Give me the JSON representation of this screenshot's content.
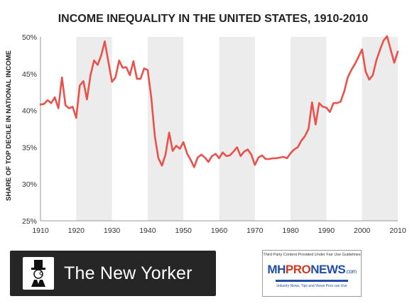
{
  "chart_data": {
    "type": "line",
    "title": "INCOME INEQUALITY IN THE UNITED STATES, 1910-2010",
    "ylabel": "SHARE OF TOP DECILE IN NATIONAL INCOME",
    "xlabel": "",
    "xlim": [
      1910,
      2010
    ],
    "ylim": [
      25,
      50
    ],
    "x_ticks": [
      1910,
      1920,
      1930,
      1940,
      1950,
      1960,
      1970,
      1980,
      1990,
      2000,
      2010
    ],
    "y_ticks": [
      "25%",
      "30%",
      "35%",
      "40%",
      "45%",
      "50%"
    ],
    "y_tick_values": [
      25,
      30,
      35,
      40,
      45,
      50
    ],
    "shaded_bands": [
      [
        1920,
        1930
      ],
      [
        1940,
        1950
      ],
      [
        1960,
        1970
      ],
      [
        1980,
        1990
      ],
      [
        2000,
        2010
      ]
    ],
    "grid": false,
    "line_color": "#e8524a",
    "band_color": "#ececec",
    "series": [
      {
        "x": [
          1910,
          1911,
          1912,
          1913,
          1914,
          1915,
          1916,
          1917,
          1918,
          1919,
          1920,
          1921,
          1922,
          1923,
          1924,
          1925,
          1926,
          1927,
          1928,
          1929,
          1930,
          1931,
          1932,
          1933,
          1934,
          1935,
          1936,
          1937,
          1938,
          1939,
          1940,
          1941,
          1942,
          1943,
          1944,
          1945,
          1946,
          1947,
          1948,
          1949,
          1950,
          1951,
          1952,
          1953,
          1954,
          1955,
          1956,
          1957,
          1958,
          1959,
          1960,
          1961,
          1962,
          1963,
          1964,
          1965,
          1966,
          1967,
          1968,
          1969,
          1970,
          1971,
          1972,
          1973,
          1974,
          1975,
          1976,
          1977,
          1978,
          1979,
          1980,
          1981,
          1982,
          1983,
          1984,
          1985,
          1986,
          1987,
          1988,
          1989,
          1990,
          1991,
          1992,
          1993,
          1994,
          1995,
          1996,
          1997,
          1998,
          1999,
          2000,
          2001,
          2002,
          2003,
          2004,
          2005,
          2006,
          2007,
          2008,
          2009,
          2010
        ],
        "values": [
          40.8,
          40.9,
          41.4,
          41.0,
          41.8,
          40.3,
          44.5,
          40.7,
          40.3,
          40.5,
          39.0,
          43.4,
          44.0,
          41.5,
          44.8,
          46.8,
          46.2,
          47.5,
          49.4,
          46.6,
          43.9,
          44.5,
          46.8,
          45.8,
          45.9,
          44.8,
          46.7,
          44.3,
          44.3,
          45.7,
          45.5,
          41.8,
          36.5,
          33.5,
          32.5,
          34.0,
          37.0,
          34.5,
          35.2,
          34.8,
          35.7,
          34.2,
          33.3,
          32.3,
          33.6,
          34.0,
          33.6,
          33.0,
          33.8,
          34.1,
          33.5,
          34.3,
          33.8,
          33.9,
          34.4,
          35.0,
          33.8,
          34.4,
          34.7,
          34.0,
          32.6,
          33.6,
          33.9,
          33.4,
          33.4,
          33.5,
          33.5,
          33.6,
          33.7,
          33.5,
          34.2,
          34.7,
          35.0,
          35.9,
          36.5,
          37.5,
          41.1,
          38.1,
          41.0,
          40.5,
          40.4,
          39.8,
          41.0,
          41.0,
          41.2,
          42.6,
          44.5,
          45.5,
          46.3,
          47.3,
          48.3,
          45.3,
          44.2,
          44.8,
          46.8,
          48.2,
          49.5,
          50.1,
          48.3,
          46.5,
          48.0
        ]
      }
    ]
  },
  "badge": {
    "text": "The New Yorker"
  },
  "mhpronews": {
    "note": "Third Party Content Provided Under Fair Use Guidelines",
    "logo_mh": "MH",
    "logo_pro": "PRO",
    "logo_news": "NEWS",
    "logo_com": ".com",
    "tagline": "Industry News, Tips and Views Pros can Use"
  }
}
